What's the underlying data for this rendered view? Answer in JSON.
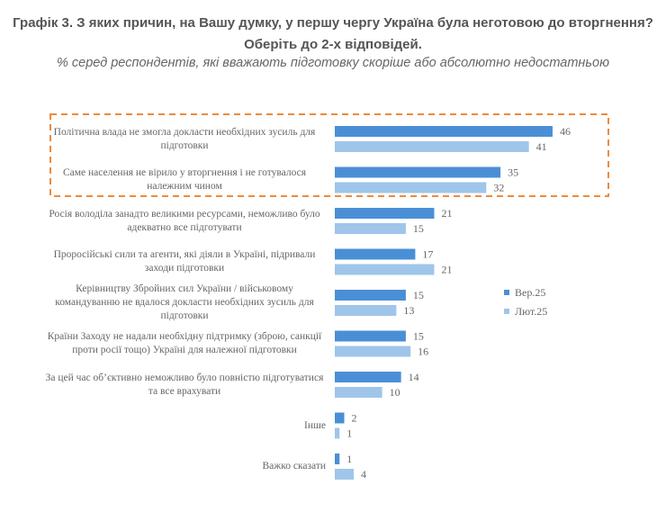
{
  "title": "Графік 3. З яких причин, на Вашу думку, у першу чергу Україна була неготовою до вторгнення? Оберіть до 2-х відповідей.",
  "subtitle": "% серед респондентів, які вважають підготовку скоріше або абсолютно недостатньою",
  "chart_data": {
    "type": "bar",
    "orientation": "horizontal",
    "title": "Графік 3. З яких причин, на Вашу думку, у першу чергу Україна була неготовою до вторгнення? Оберіть до 2-х відповідей.",
    "subtitle": "% серед респондентів, які вважають підготовку скоріше або абсолютно недостатньою",
    "categories": [
      "Політична влада не змогла докласти необхідних зусиль для підготовки",
      "Саме населення не вірило у вторгнення і не готувалося належним чином",
      "Росія володіла занадто великими ресурсами, неможливо було адекватно все підготувати",
      "Проросійські сили та агенти, які діяли в Україні, підривали заходи підготовки",
      "Керівництву Збройних сил України / військовому командуванню не вдалося докласти необхідних зусиль для підготовки",
      "Країни Заходу не надали необхідну підтримку (зброю, санкції проти росії тощо) Україні для належної підготовки",
      "За цей час об’єктивно неможливо було повністю підготуватися та все врахувати",
      "Інше",
      "Важко сказати"
    ],
    "series": [
      {
        "name": "Вер.25",
        "color": "#4a8fd6",
        "values": [
          46,
          35,
          21,
          17,
          15,
          15,
          14,
          2,
          1
        ]
      },
      {
        "name": "Лют.25",
        "color": "#9fc5ea",
        "values": [
          41,
          32,
          15,
          21,
          13,
          16,
          10,
          1,
          4
        ]
      }
    ],
    "xlim": [
      0,
      50
    ],
    "grid": false,
    "legend": "right",
    "highlight": {
      "categories": [
        0,
        1
      ],
      "style": "dashed",
      "color": "#ee8a3c"
    }
  }
}
